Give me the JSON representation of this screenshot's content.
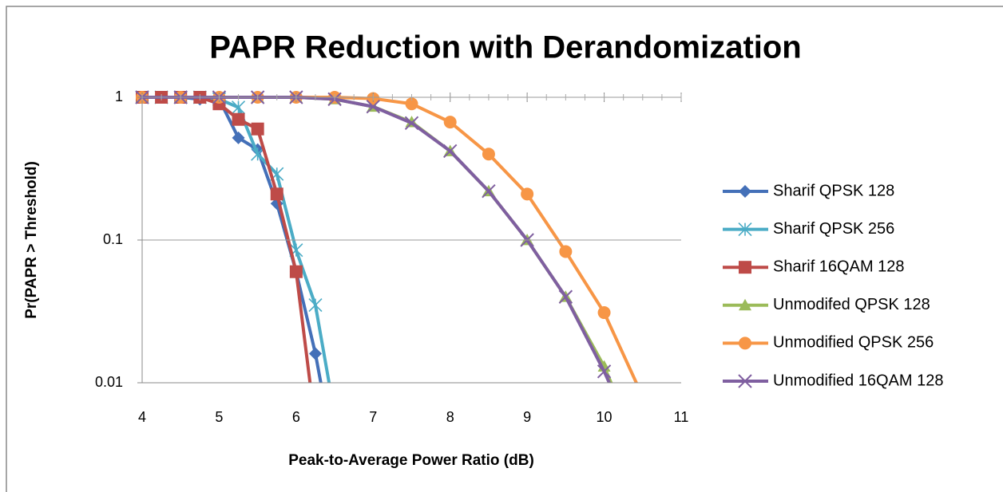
{
  "chart_data": {
    "type": "line",
    "title": "PAPR Reduction with Derandomization",
    "x_label": "Peak-to-Average Power Ratio (dB)",
    "y_label": "Pr(PAPR > Threshold)",
    "xlim": [
      4,
      11
    ],
    "xticks": [
      4,
      5,
      6,
      7,
      8,
      9,
      10,
      11
    ],
    "ylim": [
      0.01,
      1
    ],
    "yticks": [
      0.01,
      0.1,
      1
    ],
    "y_log": true,
    "grid": true,
    "legend": "right",
    "series": [
      {
        "name": "Sharif QPSK 128",
        "color": "#4470b8",
        "marker": "diamond",
        "x": [
          4,
          4.25,
          4.5,
          4.75,
          5,
          5.25,
          5.5,
          5.75,
          6,
          6.25,
          6.5
        ],
        "values": [
          1,
          1,
          1,
          0.97,
          0.97,
          0.52,
          0.43,
          0.18,
          0.06,
          0.016,
          0.003
        ]
      },
      {
        "name": "Sharif QPSK 256",
        "color": "#4bacc6",
        "marker": "star",
        "x": [
          4,
          4.25,
          4.5,
          4.75,
          5,
          5.25,
          5.5,
          5.75,
          6,
          6.25,
          6.5
        ],
        "values": [
          1,
          1,
          1,
          1,
          0.97,
          0.85,
          0.4,
          0.29,
          0.085,
          0.035,
          0.006
        ]
      },
      {
        "name": "Sharif 16QAM 128",
        "color": "#be4b48",
        "marker": "square",
        "x": [
          4,
          4.25,
          4.5,
          4.75,
          5,
          5.25,
          5.5,
          5.75,
          6,
          6.25
        ],
        "values": [
          1,
          1,
          1,
          1,
          0.9,
          0.7,
          0.6,
          0.21,
          0.06,
          0.005
        ]
      },
      {
        "name": "Unmodifed QPSK 128",
        "color": "#9bbb59",
        "marker": "triangle",
        "x": [
          4,
          4.5,
          5,
          5.5,
          6,
          6.5,
          7,
          7.5,
          8,
          8.5,
          9,
          9.5,
          10,
          10.5
        ],
        "values": [
          1,
          1,
          1,
          1,
          1,
          0.97,
          0.86,
          0.67,
          0.42,
          0.22,
          0.1,
          0.04,
          0.013,
          0.003
        ]
      },
      {
        "name": "Unmodified QPSK 256",
        "color": "#f79646",
        "marker": "circle",
        "x": [
          4,
          4.5,
          5,
          5.5,
          6,
          6.5,
          7,
          7.5,
          8,
          8.5,
          9,
          9.5,
          10,
          10.5
        ],
        "values": [
          1,
          1,
          1,
          1,
          1,
          1,
          0.98,
          0.9,
          0.67,
          0.4,
          0.21,
          0.083,
          0.031,
          0.008
        ]
      },
      {
        "name": "Unmodified 16QAM 128",
        "color": "#7f5fa0",
        "marker": "x",
        "x": [
          4,
          4.5,
          5,
          5.5,
          6,
          6.5,
          7,
          7.5,
          8,
          8.5,
          9,
          9.5,
          10,
          10.5
        ],
        "values": [
          1,
          1,
          1,
          1,
          1,
          0.97,
          0.86,
          0.66,
          0.42,
          0.22,
          0.1,
          0.04,
          0.012,
          0.003
        ]
      }
    ]
  }
}
